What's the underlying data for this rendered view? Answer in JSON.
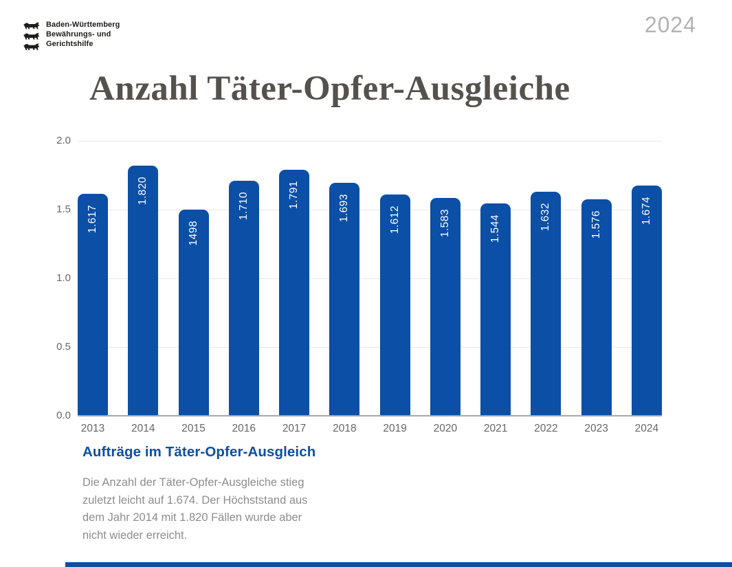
{
  "header": {
    "logo_lines": [
      "Baden-Württemberg",
      "Bewährungs- und",
      "Gerichtshilfe"
    ],
    "logo_icon": "three-lions-coat-of-arms",
    "year_badge": "2024"
  },
  "title": "Anzahl Täter-Opfer-Ausgleiche",
  "chart_data": {
    "type": "bar",
    "title": "Anzahl Täter-Opfer-Ausgleiche",
    "categories": [
      "2013",
      "2014",
      "2015",
      "2016",
      "2017",
      "2018",
      "2019",
      "2020",
      "2021",
      "2022",
      "2023",
      "2024"
    ],
    "values": [
      1617,
      1820,
      1498,
      1710,
      1791,
      1693,
      1612,
      1583,
      1544,
      1632,
      1576,
      1674
    ],
    "bar_labels": [
      "1.617",
      "1.820",
      "1498",
      "1.710",
      "1.791",
      "1.693",
      "1.612",
      "1.583",
      "1.544",
      "1.632",
      "1.576",
      "1.674"
    ],
    "xlabel": "",
    "ylabel": "",
    "y_ticks": [
      "0.0",
      "0.5",
      "1.0",
      "1.5",
      "2.0"
    ],
    "y_tick_values": [
      0,
      500,
      1000,
      1500,
      2000
    ],
    "ylim": [
      0,
      2000
    ],
    "unit": "thousands",
    "grid": true,
    "legend": "none",
    "bar_label_rotation": "vertical-bottom-up"
  },
  "caption": {
    "heading": "Aufträge im Täter-Opfer-Ausgleich",
    "description_lines": [
      "Die Anzahl der Täter-Opfer-Ausgleiche stieg",
      "zuletzt leicht auf 1.674. Der Höchststand aus",
      "dem Jahr 2014 mit 1.820 Fällen wurde aber",
      "nicht wieder erreicht."
    ]
  },
  "colors": {
    "bar": "#0b4fa6",
    "accent": "#0b4fa6",
    "title": "#55514c",
    "axis_text": "#666666",
    "gridline": "#e7e7e7",
    "axis_line": "#a8a8a8",
    "year_badge": "#b2b2b2",
    "description_text": "#8d8d8d"
  }
}
